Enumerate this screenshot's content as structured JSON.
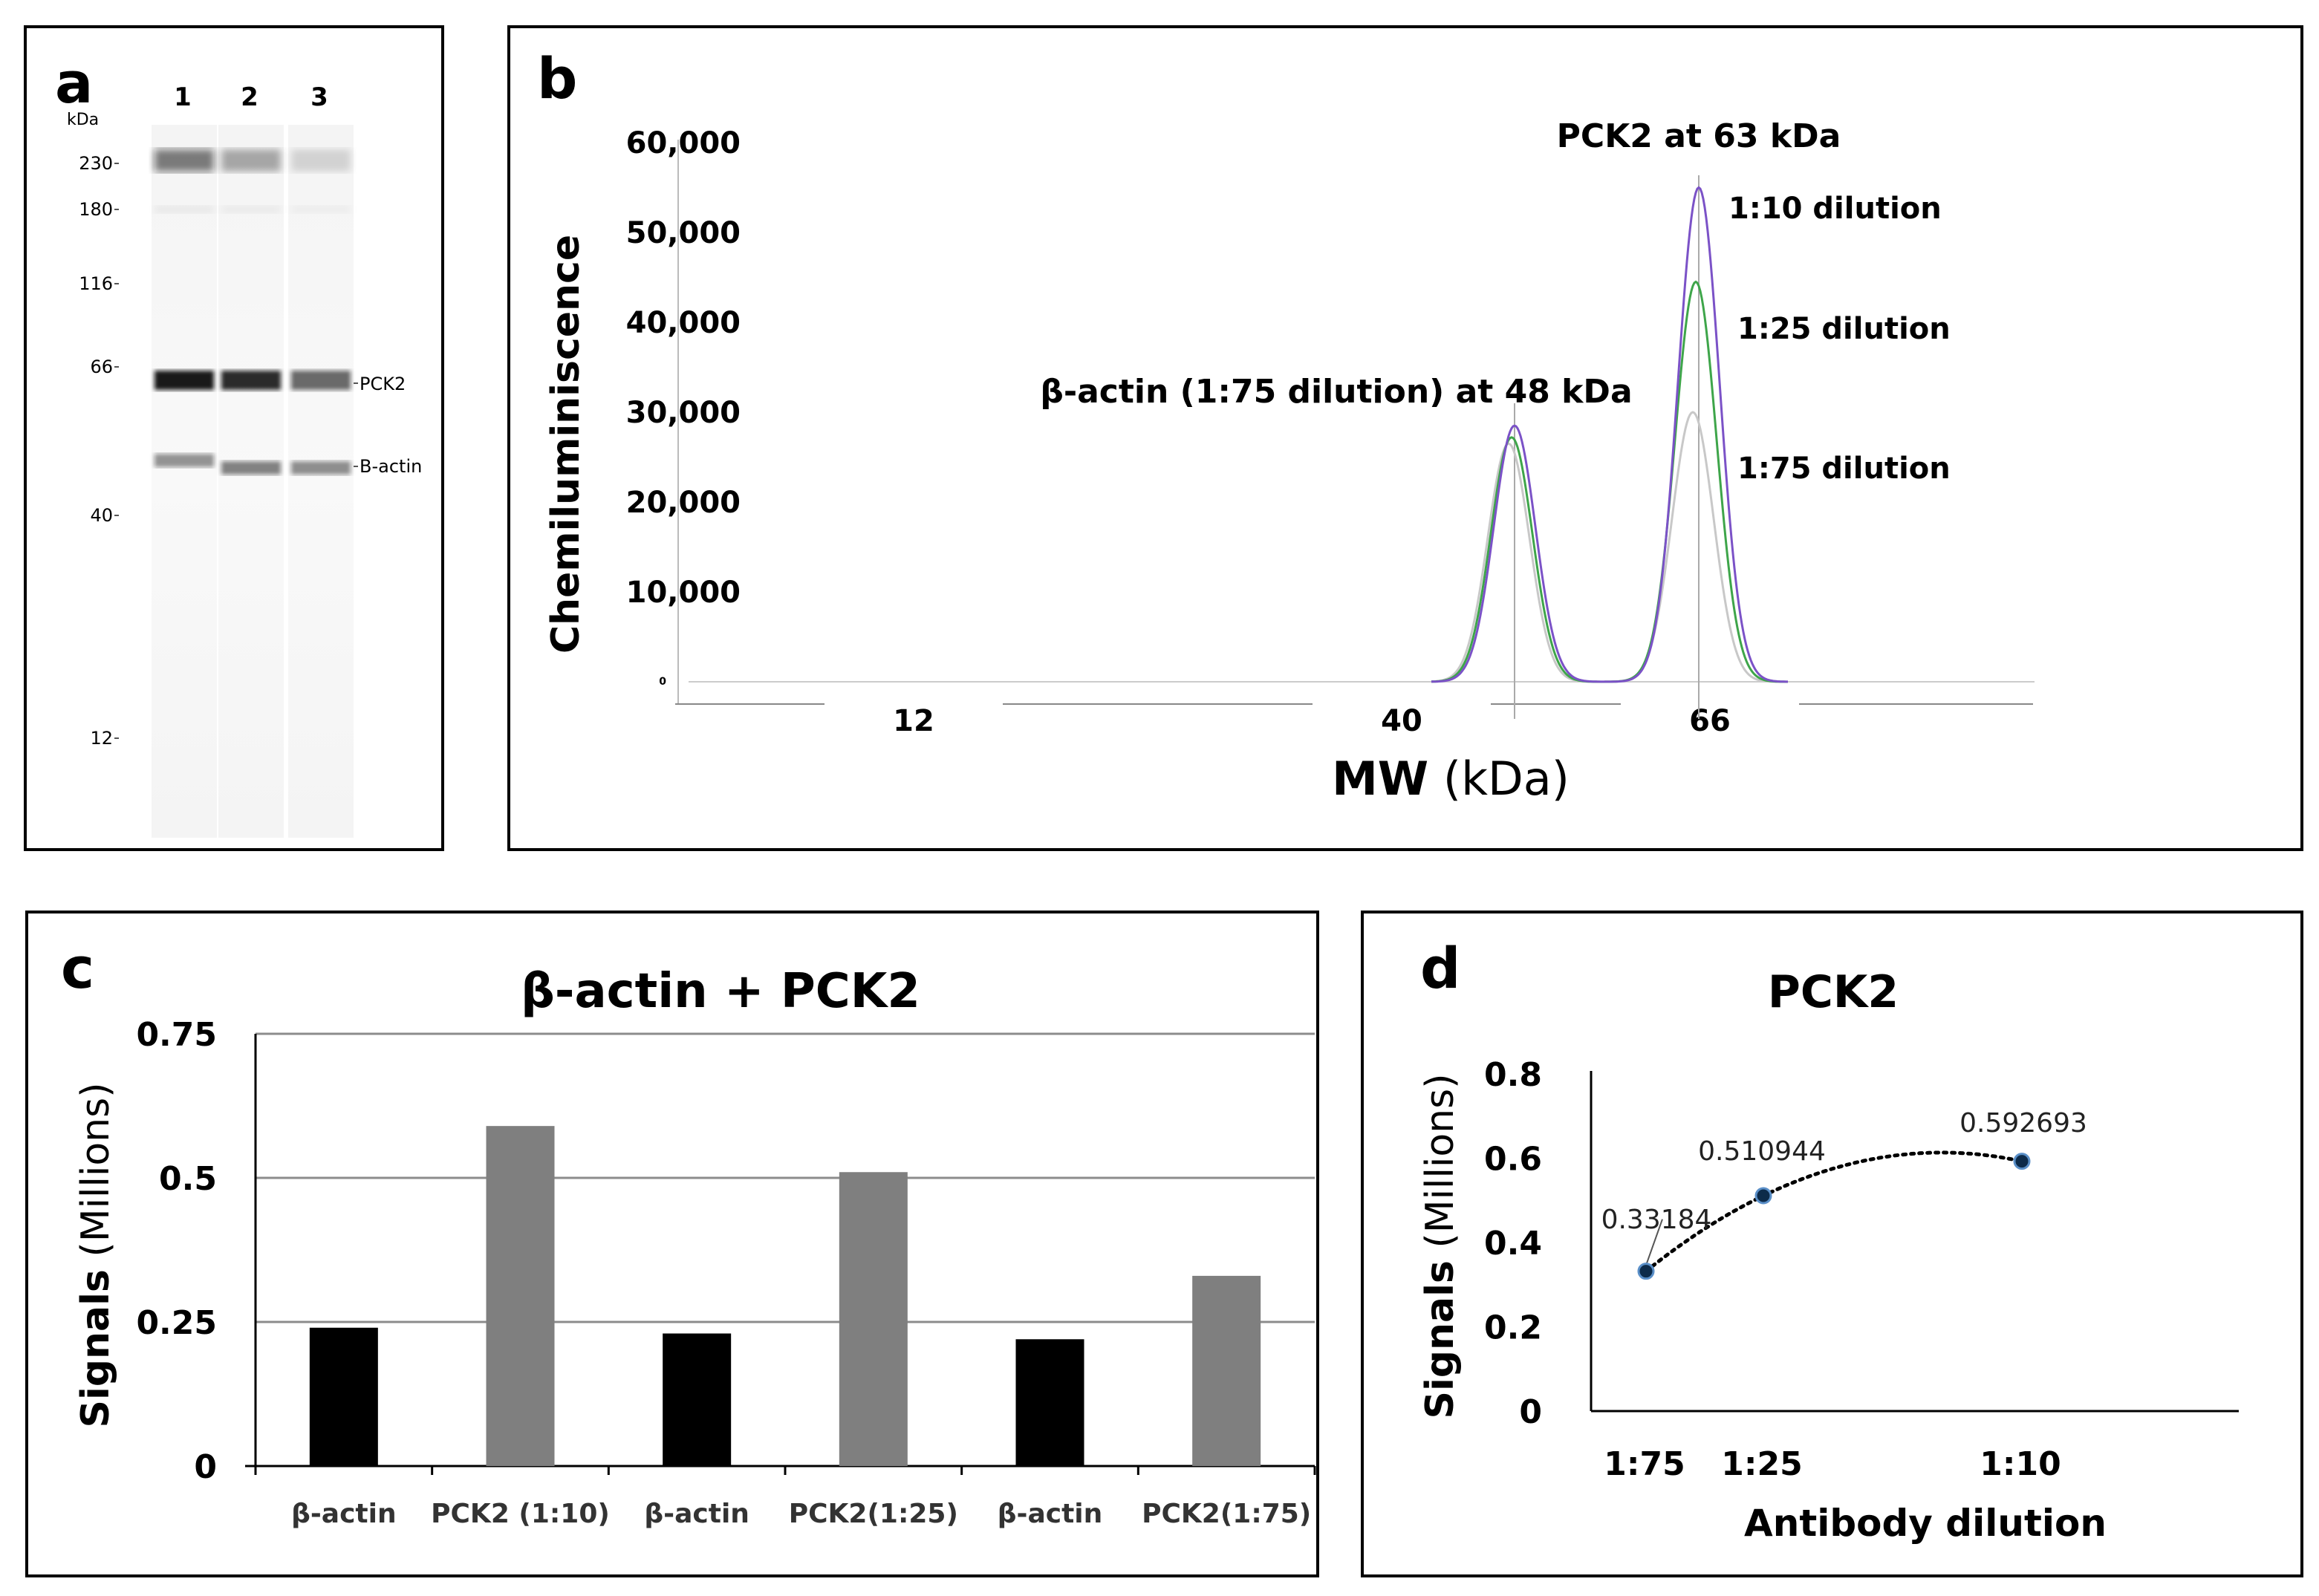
{
  "panels": {
    "a": "a",
    "b": "b",
    "c": "c",
    "d": "d"
  },
  "chart_data": [
    {
      "id": "a",
      "type": "other",
      "description_kind": "gel",
      "lanes": [
        "1",
        "2",
        "3"
      ],
      "kda_label": "kDa",
      "markers": [
        230,
        180,
        116,
        66,
        40,
        12
      ],
      "band_labels": [
        "PCK2",
        "B-actin"
      ]
    },
    {
      "id": "b",
      "type": "line",
      "ylabel": "Chemiluminiscence",
      "xlabel_bold": "MW",
      "xlabel_unit": "(kDa)",
      "ytick_labels": [
        "60,000",
        "50,000",
        "40,000",
        "30,000",
        "20,000",
        "10,000",
        "0"
      ],
      "ytick_values": [
        60000,
        50000,
        40000,
        30000,
        20000,
        10000,
        0
      ],
      "xtick_labels": [
        "12",
        "40",
        "66"
      ],
      "ylim": [
        0,
        60000
      ],
      "annotations": {
        "pck2": "PCK2 at 63 kDa",
        "actin": "β-actin (1:75 dilution) at 48 kDa",
        "d10": "1:10 dilution",
        "d25": "1:25 dilution",
        "d75": "1:75 dilution"
      },
      "series": [
        {
          "name": "1:10 dilution",
          "color": "#7b52c7",
          "peaks": [
            {
              "kda": 48,
              "value": 28500
            },
            {
              "kda": 63,
              "value": 55000
            }
          ]
        },
        {
          "name": "1:25 dilution",
          "color": "#3ea54a",
          "peaks": [
            {
              "kda": 48,
              "value": 27200
            },
            {
              "kda": 63,
              "value": 44500
            }
          ]
        },
        {
          "name": "1:75 dilution",
          "color": "#c8c8c8",
          "peaks": [
            {
              "kda": 48,
              "value": 26500
            },
            {
              "kda": 63,
              "value": 30000
            }
          ]
        }
      ]
    },
    {
      "id": "c",
      "type": "bar",
      "title": "β-actin + PCK2",
      "ylabel_bold": "Signals",
      "ylabel_unit": "(Millions)",
      "categories": [
        "β-actin",
        "PCK2 (1:10)",
        "β-actin",
        "PCK2(1:25)",
        "β-actin",
        "PCK2(1:75)"
      ],
      "values": [
        0.24,
        0.59,
        0.23,
        0.51,
        0.22,
        0.33
      ],
      "colors": [
        "#000000",
        "#7f7f7f",
        "#000000",
        "#7f7f7f",
        "#000000",
        "#7f7f7f"
      ],
      "ytick_labels": [
        "0.75",
        "0.5",
        "0.25",
        "0"
      ],
      "ytick_values": [
        0.75,
        0.5,
        0.25,
        0
      ],
      "ylim": [
        0,
        0.75
      ]
    },
    {
      "id": "d",
      "type": "scatter",
      "title": "PCK2",
      "ylabel_bold": "Signals",
      "ylabel_unit": "(Millions)",
      "xlabel": "Antibody dilution",
      "categories": [
        "1:75",
        "1:25",
        "1:10"
      ],
      "values": [
        0.33184,
        0.510944,
        0.592693
      ],
      "point_labels": [
        "0.33184",
        "0.510944",
        "0.592693"
      ],
      "ytick_labels": [
        "0.8",
        "0.6",
        "0.4",
        "0.2",
        "0"
      ],
      "ytick_values": [
        0.8,
        0.6,
        0.4,
        0.2,
        0
      ],
      "ylim": [
        0,
        0.8
      ],
      "trendline": "dotted polynomial"
    }
  ]
}
